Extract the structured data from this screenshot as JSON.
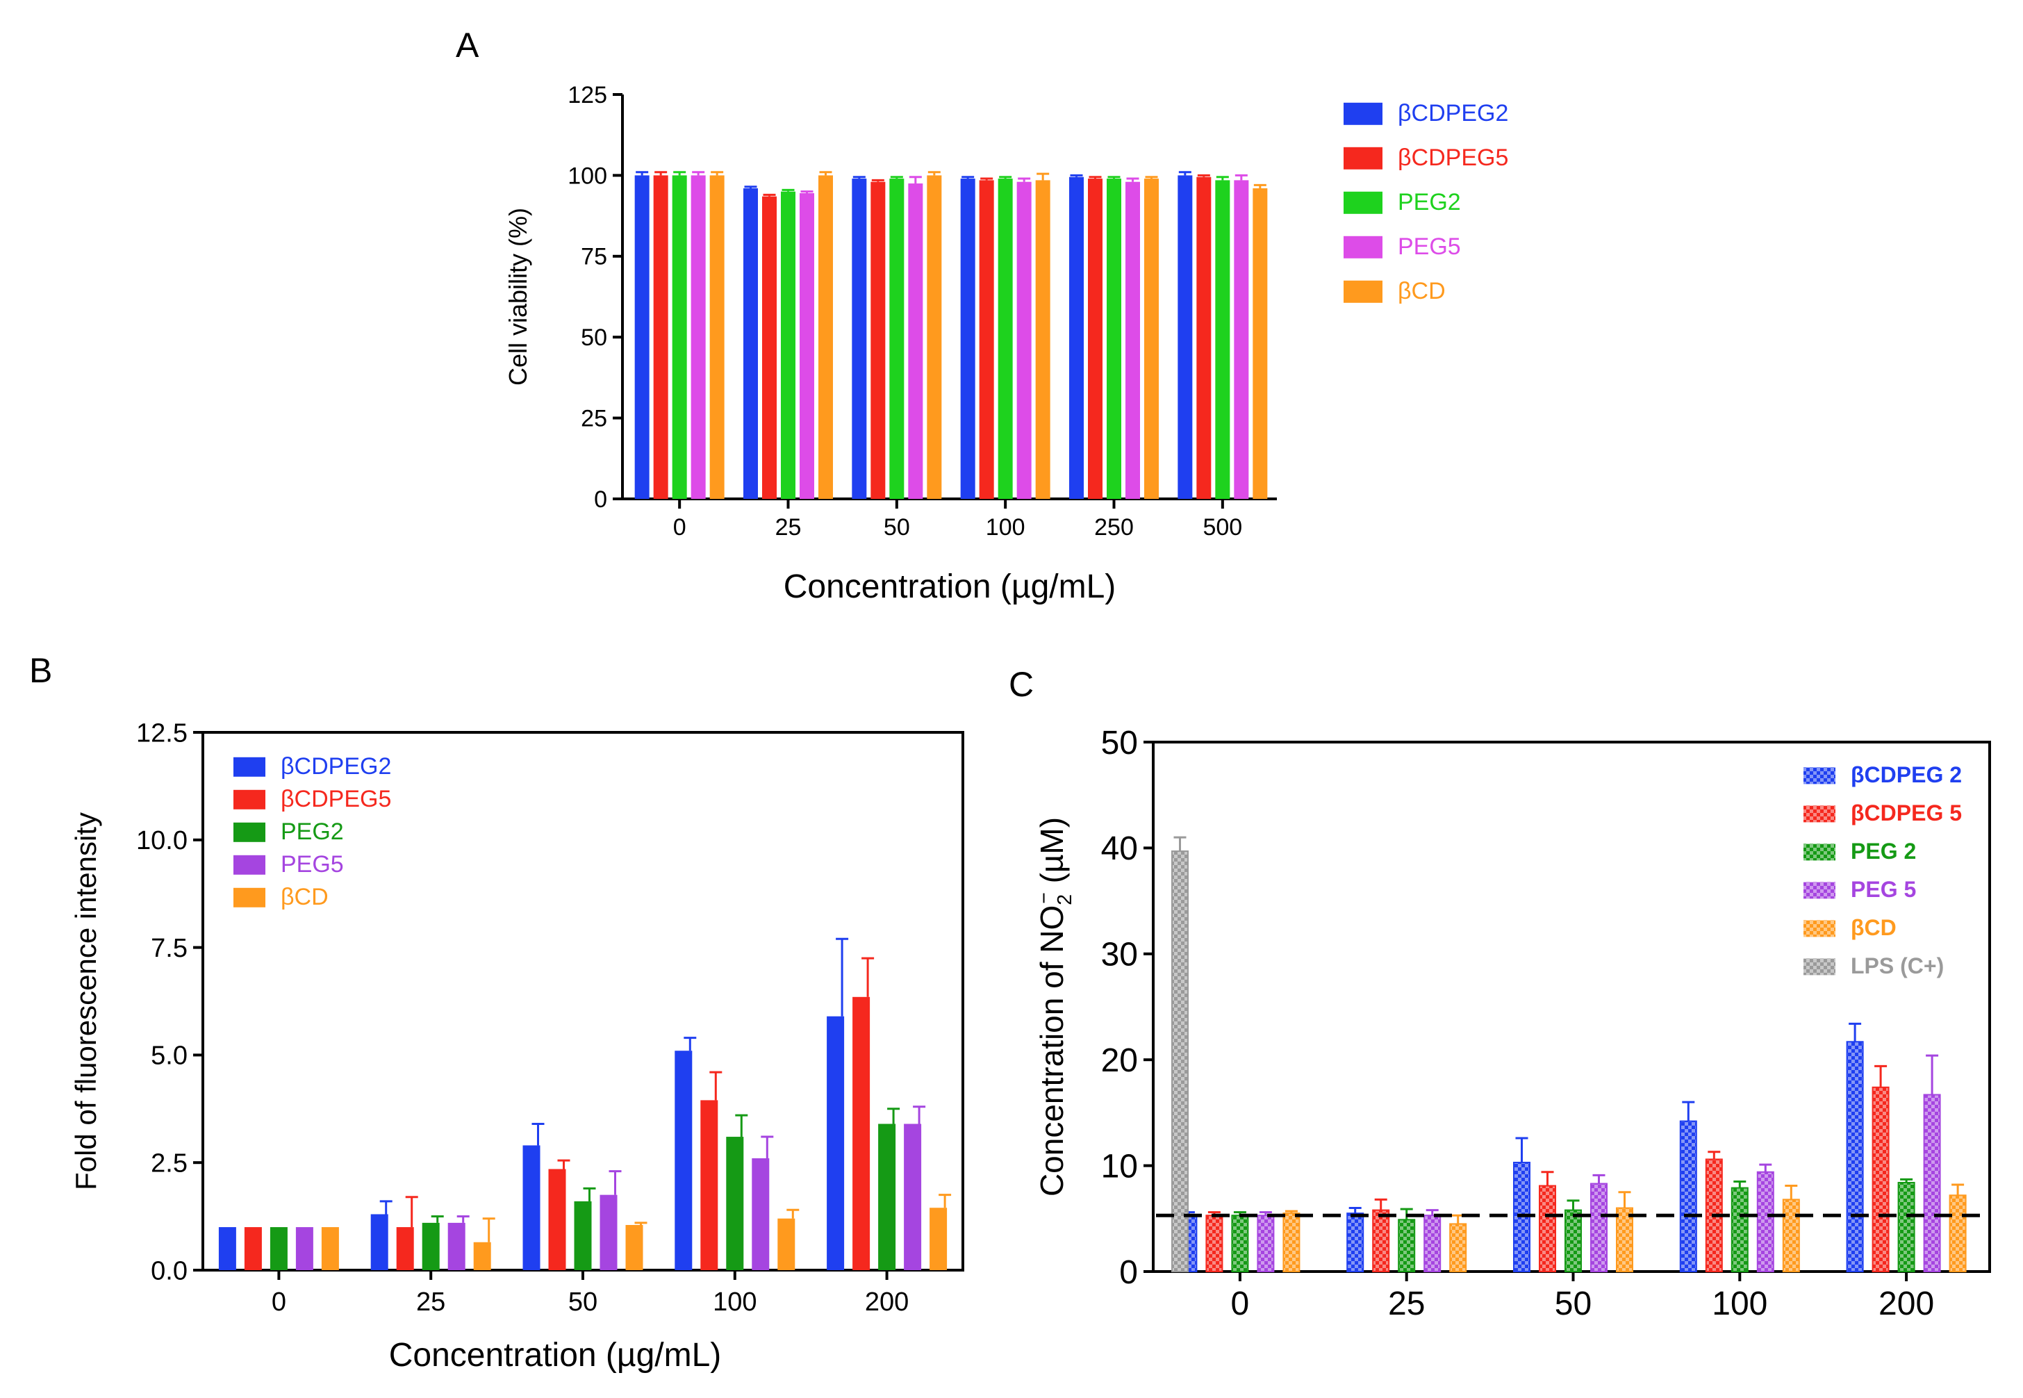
{
  "colors": {
    "bCDPEG2": "#1f3ff0",
    "bCDPEG5": "#f5281e",
    "PEG2_A": "#1ed21e",
    "PEG2_BC": "#159a15",
    "PEG5_A": "#dd4ce8",
    "PEG5_BC": "#a545e0",
    "bCD": "#ff9a1e",
    "LPS": "#9a9a9a"
  },
  "chart_data": [
    {
      "panel": "A",
      "type": "bar",
      "title": "",
      "xlabel": "Concentration (µg/mL)",
      "ylabel": "Cell viability (%)",
      "ylim": [
        0,
        125
      ],
      "yticks": [
        "0",
        "25",
        "50",
        "75",
        "100",
        "125"
      ],
      "categories": [
        "0",
        "25",
        "50",
        "100",
        "250",
        "500"
      ],
      "legend_position": "right",
      "series": [
        {
          "name": "βCDPEG2",
          "values": [
            100,
            96,
            99,
            99,
            99.5,
            100
          ],
          "errors": [
            1,
            0.5,
            0.5,
            0.5,
            0.5,
            1
          ]
        },
        {
          "name": "βCDPEG5",
          "values": [
            100,
            93.5,
            98,
            98.5,
            99,
            99.5
          ],
          "errors": [
            1,
            0.5,
            0.5,
            0.5,
            0.5,
            0.5
          ]
        },
        {
          "name": "PEG2",
          "values": [
            100,
            95,
            99,
            99,
            99,
            98.5
          ],
          "errors": [
            1,
            0.5,
            0.5,
            0.5,
            0.5,
            1
          ]
        },
        {
          "name": "PEG5",
          "values": [
            100,
            94.5,
            97.5,
            98,
            98,
            98.5
          ],
          "errors": [
            1,
            0.5,
            2,
            1,
            1,
            1.5
          ]
        },
        {
          "name": "βCD",
          "values": [
            100,
            100,
            100,
            98.5,
            99,
            96
          ],
          "errors": [
            1,
            1,
            1,
            2,
            0.5,
            1
          ]
        }
      ]
    },
    {
      "panel": "B",
      "type": "bar",
      "title": "",
      "xlabel": "Concentration (µg/mL)",
      "ylabel": "Fold of  fluorescence intensity",
      "ylim": [
        0,
        12.5
      ],
      "yticks": [
        "0.0",
        "2.5",
        "5.0",
        "7.5",
        "10.0",
        "12.5"
      ],
      "categories": [
        "0",
        "25",
        "50",
        "100",
        "200"
      ],
      "legend_position": "top-left",
      "series": [
        {
          "name": "βCDPEG2",
          "values": [
            1,
            1.3,
            2.9,
            5.1,
            5.9
          ],
          "errors": [
            0,
            0.3,
            0.5,
            0.3,
            1.8
          ]
        },
        {
          "name": "βCDPEG5",
          "values": [
            1,
            1,
            2.35,
            3.95,
            6.35
          ],
          "errors": [
            0,
            0.7,
            0.2,
            0.65,
            0.9
          ]
        },
        {
          "name": "PEG2",
          "values": [
            1,
            1.1,
            1.6,
            3.1,
            3.4
          ],
          "errors": [
            0,
            0.15,
            0.3,
            0.5,
            0.35
          ]
        },
        {
          "name": "PEG5",
          "values": [
            1,
            1.1,
            1.75,
            2.6,
            3.4
          ],
          "errors": [
            0,
            0.15,
            0.55,
            0.5,
            0.4
          ]
        },
        {
          "name": "βCD",
          "values": [
            1,
            0.65,
            1.05,
            1.2,
            1.45
          ],
          "errors": [
            0,
            0.55,
            0.05,
            0.2,
            0.3
          ]
        }
      ]
    },
    {
      "panel": "C",
      "type": "bar",
      "title": "",
      "xlabel": "",
      "ylabel_prefix": "Concentration of NO",
      "ylabel_sup": "−",
      "ylabel_sub": "2",
      "ylabel_suffix": " (µM)",
      "ylim": [
        0,
        50
      ],
      "yticks": [
        "0",
        "10",
        "20",
        "30",
        "40",
        "50"
      ],
      "categories": [
        "0",
        "25",
        "50",
        "100",
        "200"
      ],
      "reference_line": 5.3,
      "legend_position": "top-right",
      "series": [
        {
          "name": "βCDPEG 2",
          "values": [
            5.3,
            5.5,
            10.3,
            14.2,
            21.7
          ],
          "errors": [
            0.3,
            0.5,
            2.3,
            1.8,
            1.7
          ]
        },
        {
          "name": "βCDPEG 5",
          "values": [
            5.3,
            5.8,
            8.1,
            10.6,
            17.4
          ],
          "errors": [
            0.3,
            1,
            1.3,
            0.7,
            2
          ]
        },
        {
          "name": "PEG 2",
          "values": [
            5.3,
            4.9,
            5.8,
            7.9,
            8.4
          ],
          "errors": [
            0.3,
            1,
            0.9,
            0.6,
            0.3
          ]
        },
        {
          "name": "PEG 5",
          "values": [
            5.3,
            5.3,
            8.3,
            9.4,
            16.7
          ],
          "errors": [
            0.3,
            0.5,
            0.8,
            0.7,
            3.7
          ]
        },
        {
          "name": "βCD",
          "values": [
            5.5,
            4.5,
            6,
            6.8,
            7.2
          ],
          "errors": [
            0.2,
            0.8,
            1.5,
            1.3,
            1
          ]
        },
        {
          "name": "LPS (C+)",
          "values": [
            39.7,
            null,
            null,
            null,
            null
          ],
          "errors": [
            1.3,
            null,
            null,
            null,
            null
          ]
        }
      ]
    }
  ]
}
